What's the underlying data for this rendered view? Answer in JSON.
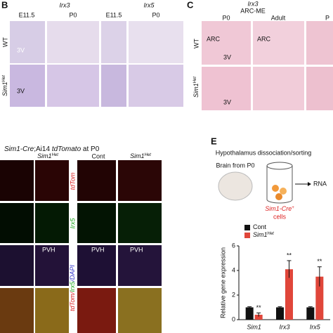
{
  "panel_b": {
    "label": "B",
    "genes": [
      "Irx3",
      "Irx5"
    ],
    "stages": [
      "E11.5",
      "P0",
      "E11.5",
      "P0"
    ],
    "rows": [
      {
        "text": "WT"
      },
      {
        "text": "Sim1",
        "sup": "Het"
      }
    ],
    "region_label": "3V"
  },
  "panel_c": {
    "label": "C",
    "gene": "Irx3",
    "region": "ARC-ME",
    "stages": [
      "P0",
      "Adult",
      "P"
    ],
    "rows": [
      {
        "text": "WT"
      },
      {
        "text": "Sim1",
        "sup": "Het"
      }
    ],
    "region_labels": [
      "ARC",
      "3V"
    ]
  },
  "panel_d": {
    "title_a": "Sim1-Cre",
    "title_b": ";Ai14 ",
    "title_c": "tdTomato",
    "title_d": " at P0",
    "columns": [
      {
        "text": "Sim1",
        "sup": "Het"
      },
      {
        "text": "Cont"
      },
      {
        "text": "Sim1",
        "sup": "Het"
      }
    ],
    "channels": [
      "tdTom",
      "Irx5"
    ],
    "merge": [
      "tdTom/",
      "Irx5",
      "/DAPI"
    ],
    "region_label": "PVH"
  },
  "panel_e": {
    "label": "E",
    "title": "Hypothalamus dissociation/sorting",
    "source": "Brain from P0",
    "product": "RNA",
    "cells": {
      "text": "Sim1-Cre",
      "sup": "+",
      "rest": "cells"
    }
  },
  "chart_data": {
    "type": "bar",
    "y_label": "Relative gene expression",
    "categories": [
      "Sim1",
      "Irx3",
      "Irx5"
    ],
    "series": [
      {
        "name": "Cont",
        "color": "#111111",
        "values": [
          1,
          1,
          1
        ],
        "errors": [
          0.05,
          0.05,
          0.05
        ]
      },
      {
        "name": "Sim1",
        "name_sup": "Het",
        "color": "#e0463a",
        "values": [
          0.4,
          4.1,
          3.5
        ],
        "errors": [
          0.15,
          0.7,
          0.8
        ],
        "significance": [
          "**",
          "**",
          "**"
        ]
      }
    ],
    "ylim": [
      0,
      6
    ],
    "yticks": [
      0,
      2,
      4,
      6
    ]
  }
}
